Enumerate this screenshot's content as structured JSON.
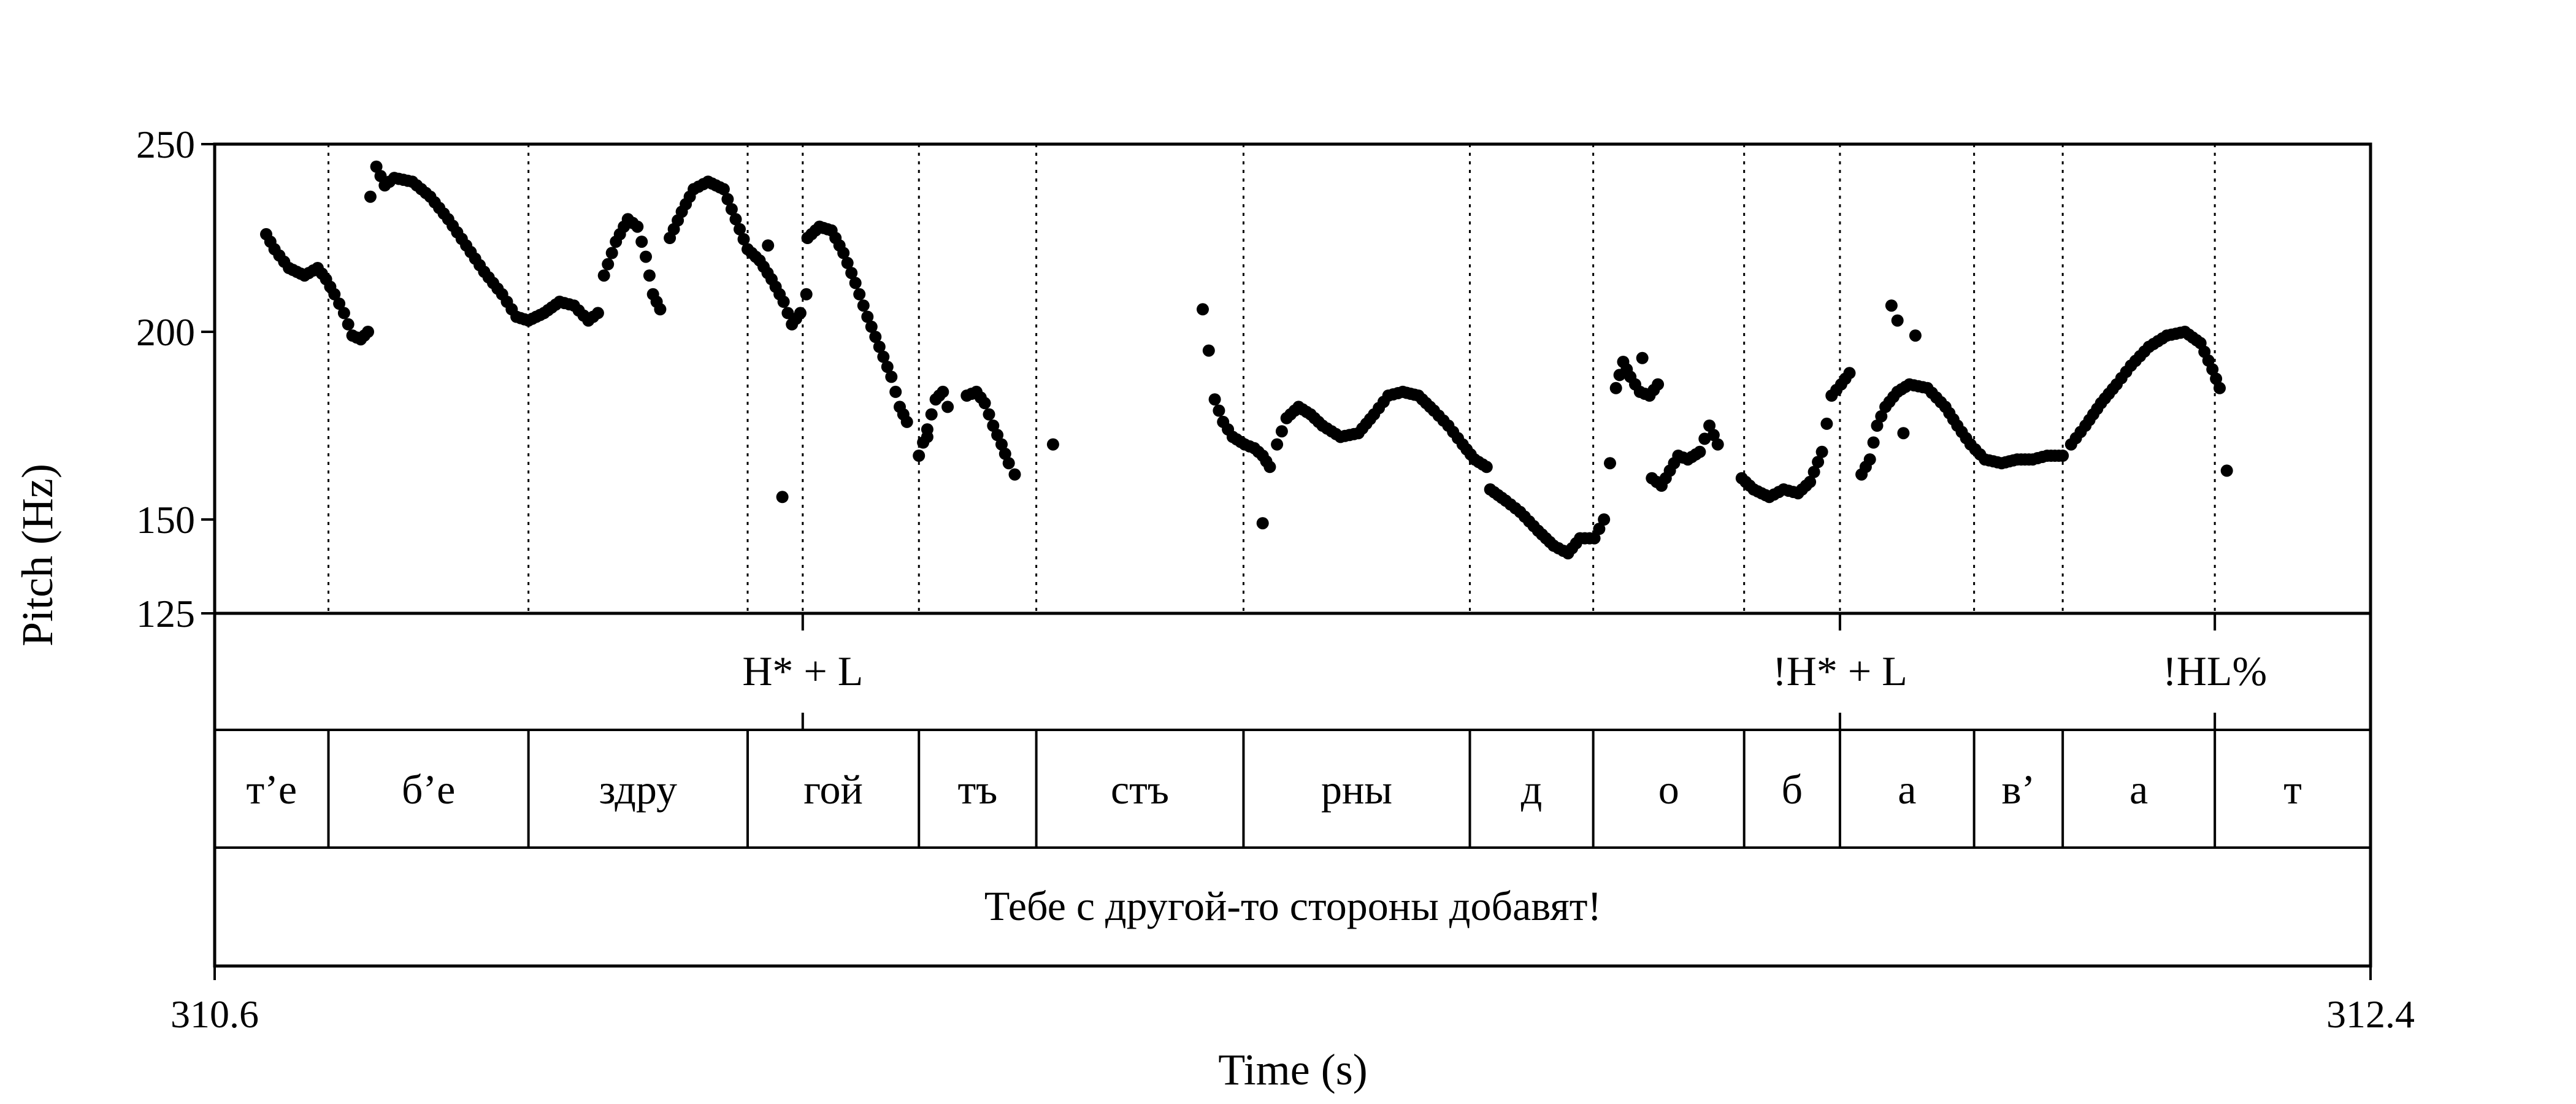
{
  "chart_data": {
    "type": "scatter",
    "title": "",
    "xlabel": "Time (s)",
    "ylabel": "Pitch (Hz)",
    "xlim": [
      310.6,
      312.4
    ],
    "ylim": [
      125,
      250
    ],
    "x_ticks": [
      "310.6",
      "312.4"
    ],
    "y_ticks": [
      {
        "value": 250,
        "label": "250"
      },
      {
        "value": 200,
        "label": "200"
      },
      {
        "value": 150,
        "label": "150"
      },
      {
        "value": 125,
        "label": "125"
      }
    ],
    "grid": false,
    "boundaries": [
      310.695,
      310.862,
      311.045,
      311.091,
      311.188,
      311.286,
      311.459,
      311.648,
      311.751,
      311.877,
      311.957,
      312.069,
      312.143,
      312.27
    ],
    "tones": [
      {
        "label": "H* + L",
        "time": 311.091
      },
      {
        "label": "!H* + L",
        "time": 311.957
      },
      {
        "label": "!HL%",
        "time": 312.27
      }
    ],
    "syllables": [
      {
        "label": "т’е",
        "start": 310.6,
        "end": 310.695
      },
      {
        "label": "б’е",
        "start": 310.695,
        "end": 310.862
      },
      {
        "label": "здру",
        "start": 310.862,
        "end": 311.045
      },
      {
        "label": "гой",
        "start": 311.045,
        "end": 311.188
      },
      {
        "label": "тъ",
        "start": 311.188,
        "end": 311.286
      },
      {
        "label": "стъ",
        "start": 311.286,
        "end": 311.459
      },
      {
        "label": "рны",
        "start": 311.459,
        "end": 311.648
      },
      {
        "label": "д",
        "start": 311.648,
        "end": 311.751
      },
      {
        "label": "о",
        "start": 311.751,
        "end": 311.877
      },
      {
        "label": "б",
        "start": 311.877,
        "end": 311.957
      },
      {
        "label": "а",
        "start": 311.957,
        "end": 312.069
      },
      {
        "label": "в’",
        "start": 312.069,
        "end": 312.143
      },
      {
        "label": "а",
        "start": 312.143,
        "end": 312.27
      },
      {
        "label": "т",
        "start": 312.27,
        "end": 312.4
      }
    ],
    "sentence": "Тебе с другой-то стороны добавят!",
    "pitch_anchors": [
      [
        [
          310.643,
          226
        ],
        [
          310.65,
          222
        ],
        [
          310.662,
          217
        ],
        [
          310.675,
          215
        ],
        [
          310.686,
          217
        ],
        [
          310.693,
          214
        ],
        [
          310.7,
          210
        ],
        [
          310.708,
          205
        ],
        [
          310.715,
          199
        ],
        [
          310.722,
          198
        ],
        [
          310.728,
          200
        ]
      ],
      [
        [
          310.735,
          244
        ],
        [
          310.742,
          239
        ],
        [
          310.75,
          241
        ],
        [
          310.765,
          240
        ],
        [
          310.78,
          236
        ],
        [
          310.795,
          230
        ],
        [
          310.81,
          223
        ],
        [
          310.825,
          216
        ],
        [
          310.84,
          210
        ],
        [
          310.852,
          204
        ],
        [
          310.862,
          203
        ],
        [
          310.875,
          205
        ],
        [
          310.888,
          208
        ],
        [
          310.9,
          207
        ],
        [
          310.912,
          203
        ],
        [
          310.92,
          205
        ]
      ],
      [
        [
          310.925,
          215
        ],
        [
          310.935,
          224
        ],
        [
          310.945,
          230
        ],
        [
          310.953,
          228
        ],
        [
          310.96,
          220
        ],
        [
          310.966,
          210
        ],
        [
          310.972,
          206
        ]
      ],
      [
        [
          310.98,
          225
        ],
        [
          310.99,
          232
        ],
        [
          311.0,
          238
        ],
        [
          311.012,
          240
        ],
        [
          311.025,
          238
        ],
        [
          311.035,
          230
        ],
        [
          311.045,
          222
        ],
        [
          311.055,
          219
        ],
        [
          311.065,
          214
        ],
        [
          311.075,
          208
        ],
        [
          311.082,
          202
        ],
        [
          311.089,
          205
        ],
        [
          311.094,
          210
        ]
      ],
      [
        [
          311.095,
          225
        ],
        [
          311.105,
          228
        ],
        [
          311.115,
          227
        ],
        [
          311.125,
          221
        ],
        [
          311.135,
          213
        ],
        [
          311.145,
          204
        ],
        [
          311.155,
          196
        ],
        [
          311.165,
          188
        ],
        [
          311.172,
          180
        ],
        [
          311.178,
          176
        ]
      ],
      [
        [
          311.188,
          167
        ],
        [
          311.195,
          174
        ],
        [
          311.202,
          182
        ],
        [
          311.208,
          184
        ],
        [
          311.212,
          180
        ]
      ],
      [
        [
          311.228,
          183
        ],
        [
          311.236,
          184
        ],
        [
          311.243,
          181
        ],
        [
          311.25,
          175
        ],
        [
          311.257,
          170
        ],
        [
          311.263,
          165
        ],
        [
          311.268,
          162
        ]
      ]
    ],
    "pitch_anchors_b": [
      [
        [
          311.425,
          206
        ],
        [
          311.43,
          195
        ],
        [
          311.435,
          182
        ],
        [
          311.442,
          176
        ],
        [
          311.45,
          172
        ],
        [
          311.46,
          170
        ],
        [
          311.468,
          169
        ],
        [
          311.475,
          167
        ],
        [
          311.481,
          164
        ]
      ],
      [
        [
          311.487,
          170
        ],
        [
          311.495,
          177
        ],
        [
          311.505,
          180
        ],
        [
          311.515,
          178
        ],
        [
          311.525,
          175
        ],
        [
          311.54,
          172
        ],
        [
          311.555,
          173
        ],
        [
          311.568,
          178
        ],
        [
          311.58,
          183
        ],
        [
          311.592,
          184
        ],
        [
          311.605,
          183
        ],
        [
          311.618,
          179
        ],
        [
          311.63,
          175
        ],
        [
          311.642,
          170
        ],
        [
          311.652,
          166
        ],
        [
          311.662,
          164
        ]
      ],
      [
        [
          311.665,
          158
        ],
        [
          311.678,
          155
        ],
        [
          311.69,
          152
        ],
        [
          311.705,
          147
        ],
        [
          311.718,
          143
        ],
        [
          311.73,
          141
        ],
        [
          311.74,
          145
        ],
        [
          311.752,
          145
        ],
        [
          311.76,
          150
        ]
      ],
      [
        [
          311.765,
          165
        ],
        [
          311.77,
          185
        ],
        [
          311.776,
          192
        ],
        [
          311.782,
          188
        ],
        [
          311.79,
          184
        ],
        [
          311.798,
          183
        ],
        [
          311.805,
          186
        ]
      ],
      [
        [
          311.8,
          161
        ],
        [
          311.808,
          159
        ],
        [
          311.815,
          163
        ],
        [
          311.822,
          167
        ],
        [
          311.83,
          166
        ],
        [
          311.84,
          168
        ],
        [
          311.848,
          175
        ],
        [
          311.855,
          170
        ]
      ],
      [
        [
          311.875,
          161
        ],
        [
          311.885,
          158
        ],
        [
          311.898,
          156
        ],
        [
          311.91,
          158
        ],
        [
          311.922,
          157
        ],
        [
          311.932,
          160
        ],
        [
          311.942,
          168
        ],
        [
          311.95,
          183
        ],
        [
          311.958,
          186
        ],
        [
          311.965,
          189
        ]
      ],
      [
        [
          311.975,
          162
        ],
        [
          311.982,
          166
        ],
        [
          311.988,
          175
        ],
        [
          311.995,
          180
        ],
        [
          312.005,
          184
        ],
        [
          312.015,
          186
        ],
        [
          312.03,
          185
        ],
        [
          312.045,
          180
        ],
        [
          312.055,
          175
        ],
        [
          312.066,
          170
        ],
        [
          312.078,
          166
        ],
        [
          312.092,
          165
        ],
        [
          312.105,
          166
        ],
        [
          312.118,
          166
        ],
        [
          312.13,
          167
        ],
        [
          312.143,
          167
        ]
      ],
      [
        [
          312.15,
          170
        ],
        [
          312.162,
          175
        ],
        [
          312.175,
          181
        ],
        [
          312.188,
          186
        ],
        [
          312.2,
          191
        ],
        [
          312.215,
          196
        ],
        [
          312.23,
          199
        ],
        [
          312.245,
          200
        ],
        [
          312.258,
          197
        ],
        [
          312.268,
          190
        ],
        [
          312.274,
          185
        ]
      ]
    ],
    "pitch_isolated": [
      [
        311.074,
        156
      ],
      [
        311.062,
        223
      ],
      [
        310.73,
        236
      ],
      [
        311.195,
        172
      ],
      [
        311.475,
        149
      ],
      [
        312.0,
        207
      ],
      [
        312.005,
        203
      ],
      [
        312.01,
        173
      ],
      [
        312.02,
        199
      ],
      [
        311.792,
        193
      ],
      [
        311.3,
        170
      ],
      [
        312.28,
        163
      ]
    ]
  }
}
